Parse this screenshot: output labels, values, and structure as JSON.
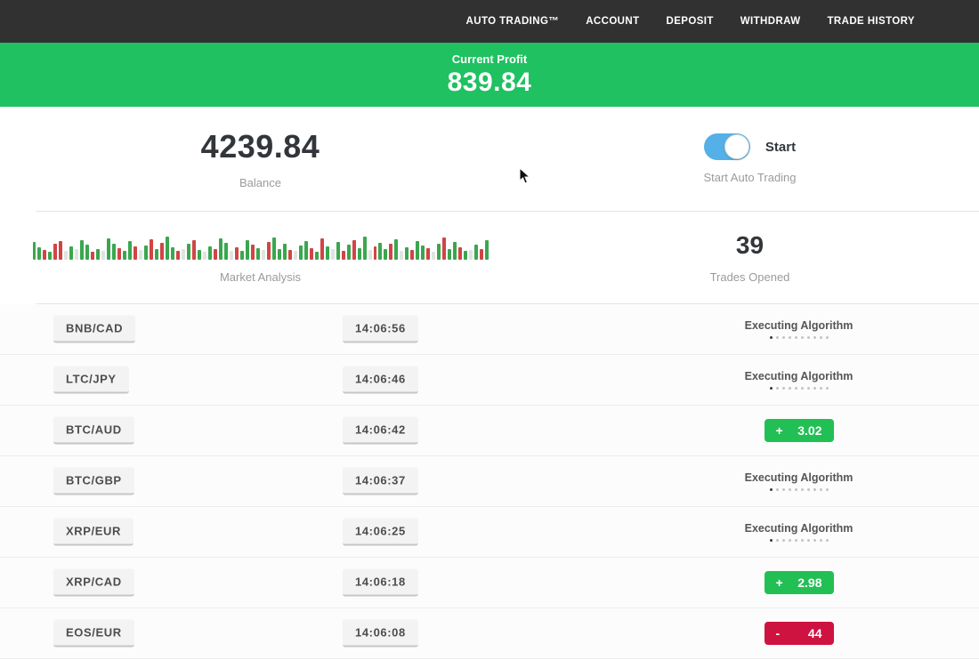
{
  "nav": {
    "items": [
      {
        "id": "auto-trading",
        "label": "AUTO TRADING™"
      },
      {
        "id": "account",
        "label": "ACCOUNT"
      },
      {
        "id": "deposit",
        "label": "DEPOSIT"
      },
      {
        "id": "withdraw",
        "label": "WITHDRAW"
      },
      {
        "id": "trade-history",
        "label": "TRADE HISTORY"
      }
    ]
  },
  "banner": {
    "label": "Current Profit",
    "value": "839.84"
  },
  "stats": {
    "balance": {
      "value": "4239.84",
      "label": "Balance"
    },
    "auto_trading": {
      "toggle_label": "Start",
      "label": "Start Auto Trading",
      "toggle_on": true
    },
    "market_analysis": {
      "label": "Market Analysis"
    },
    "trades_opened": {
      "value": "39",
      "label": "Trades Opened"
    }
  },
  "chart_data": {
    "type": "bar",
    "title": "Market Analysis",
    "description": "decorative mini candlestick/volume strip, green/red/pale bars, bottom-aligned",
    "bar_colors": {
      "g": "#3aa74e",
      "r": "#d04545",
      "l": "#dfe4df"
    },
    "bars": [
      "g20",
      "g14",
      "r11",
      "g9",
      "r18",
      "r21",
      "l10",
      "g15",
      "l12",
      "g22",
      "g17",
      "r9",
      "g12",
      "l10",
      "g24",
      "g18",
      "r13",
      "g10",
      "g21",
      "r15",
      "l11",
      "g16",
      "r23",
      "g12",
      "r19",
      "g26",
      "g14",
      "r10",
      "l12",
      "g18",
      "r22",
      "g11",
      "l9",
      "g15",
      "r12",
      "g24",
      "g19",
      "l10",
      "r14",
      "g10",
      "g22",
      "r17",
      "g13",
      "l11",
      "r20",
      "g25",
      "g12",
      "g18",
      "r11",
      "l10",
      "g16",
      "g21",
      "r13",
      "g9",
      "r24",
      "g15",
      "l12",
      "g20",
      "r10",
      "g17",
      "r22",
      "g13",
      "g26",
      "l11",
      "r15",
      "g19",
      "g12",
      "r18",
      "g23",
      "l10",
      "g14",
      "r11",
      "g21",
      "g16",
      "r13",
      "l9",
      "g18",
      "r25",
      "g12",
      "g20",
      "r14",
      "g10",
      "l11",
      "g17",
      "r12",
      "g22"
    ]
  },
  "status_labels": {
    "executing": "Executing Algorithm"
  },
  "trades": [
    {
      "pair": "BNB/CAD",
      "time": "14:06:56",
      "status": "executing"
    },
    {
      "pair": "LTC/JPY",
      "time": "14:06:46",
      "status": "executing"
    },
    {
      "pair": "BTC/AUD",
      "time": "14:06:42",
      "status": "profit",
      "sign": "+",
      "amount": "3.02"
    },
    {
      "pair": "BTC/GBP",
      "time": "14:06:37",
      "status": "executing"
    },
    {
      "pair": "XRP/EUR",
      "time": "14:06:25",
      "status": "executing"
    },
    {
      "pair": "XRP/CAD",
      "time": "14:06:18",
      "status": "profit",
      "sign": "+",
      "amount": "2.98"
    },
    {
      "pair": "EOS/EUR",
      "time": "14:06:08",
      "status": "loss",
      "sign": "-",
      "amount": "44"
    }
  ],
  "colors": {
    "nav_bg": "#313131",
    "banner_green": "#1fc161",
    "profit_green": "#22bf55",
    "loss_red": "#cf1340",
    "toggle_blue": "#54b0e6"
  }
}
